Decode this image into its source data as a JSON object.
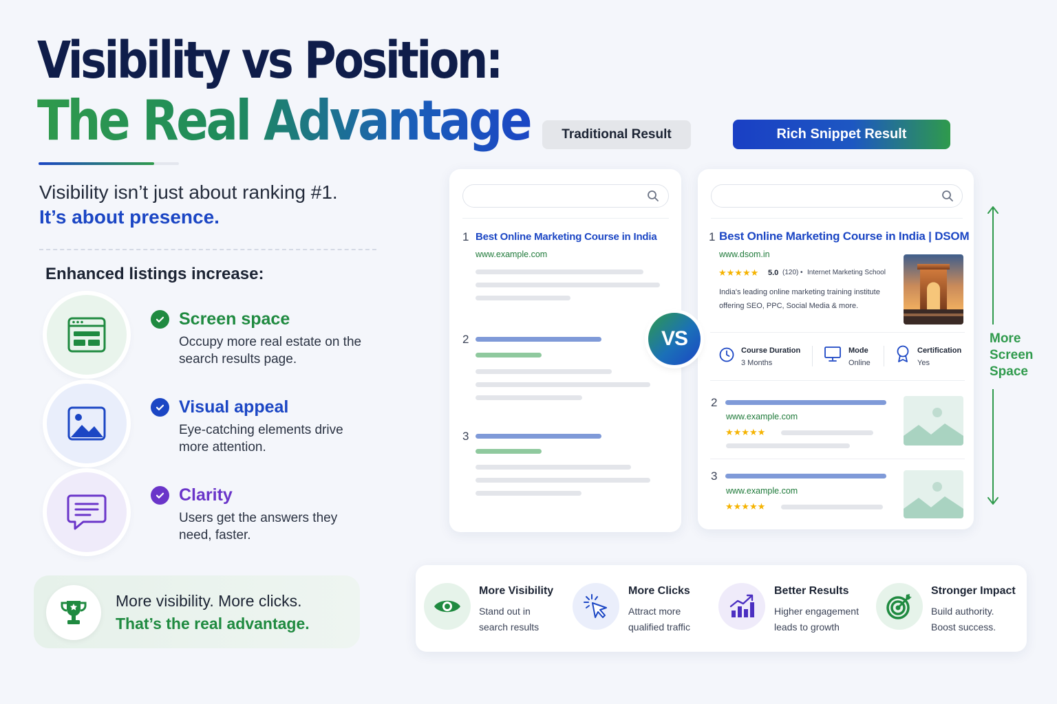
{
  "title": {
    "line1": "Visibility vs Position:",
    "line2": "The Real Advantage"
  },
  "subtitle": {
    "line1": "Visibility isn’t just about ranking #1.",
    "line2": "It’s about presence."
  },
  "enhanced_heading": "Enhanced listings increase:",
  "features": [
    {
      "title": "Screen space",
      "desc": "Occupy more real estate on the search results page.",
      "icon": "browser-window-icon",
      "color": "#1f8a40"
    },
    {
      "title": "Visual appeal",
      "desc": "Eye-catching elements drive more attention.",
      "icon": "image-icon",
      "color": "#1b46c4"
    },
    {
      "title": "Clarity",
      "desc": "Users get the answers they need, faster.",
      "icon": "chat-bubble-icon",
      "color": "#6a35c9"
    }
  ],
  "banner": {
    "line1": "More visibility. More clicks.",
    "line2": "That’s the real advantage.",
    "icon": "trophy-icon"
  },
  "labels": {
    "traditional": "Traditional Result",
    "rich": "Rich Snippet Result"
  },
  "traditional": {
    "results": [
      {
        "num": "1",
        "title": "Best Online Marketing Course in India",
        "url": "www.example.com"
      },
      {
        "num": "2"
      },
      {
        "num": "3"
      }
    ]
  },
  "vs": "VS",
  "rich": {
    "top": {
      "num": "1",
      "title": "Best Online Marketing Course in India | DSOM",
      "url": "www.dsom.in",
      "stars": "★★★★★",
      "rating": "5.0",
      "reviews": "(120)",
      "separator": "•",
      "source": "Internet Marketing School",
      "desc": "India's leading online marketing training institute offering SEO, PPC, Social Media & more.",
      "meta": [
        {
          "key": "Course Duration",
          "value": "3 Months",
          "icon": "clock-icon"
        },
        {
          "key": "Mode",
          "value": "Online",
          "icon": "monitor-icon"
        },
        {
          "key": "Certification",
          "value": "Yes",
          "icon": "certificate-icon"
        }
      ]
    },
    "others": [
      {
        "num": "2",
        "url": "www.example.com",
        "stars": "★★★★★"
      },
      {
        "num": "3",
        "url": "www.example.com",
        "stars": "★★★★★"
      }
    ]
  },
  "more_screen_space": {
    "line1": "More",
    "line2": "Screen",
    "line3": "Space"
  },
  "benefits": [
    {
      "title": "More Visibility",
      "line1": "Stand out in",
      "line2": "search results",
      "icon": "eye-icon"
    },
    {
      "title": "More Clicks",
      "line1": "Attract more",
      "line2": "qualified traffic",
      "icon": "cursor-click-icon"
    },
    {
      "title": "Better Results",
      "line1": "Higher engagement",
      "line2": "leads to growth",
      "icon": "growth-chart-icon"
    },
    {
      "title": "Stronger Impact",
      "line1": "Build authority.",
      "line2": "Boost success.",
      "icon": "target-icon"
    }
  ],
  "colors": {
    "navy": "#0f1d4a",
    "green": "#2f9a4c",
    "blue": "#1b46c4",
    "purple": "#6a35c9"
  }
}
